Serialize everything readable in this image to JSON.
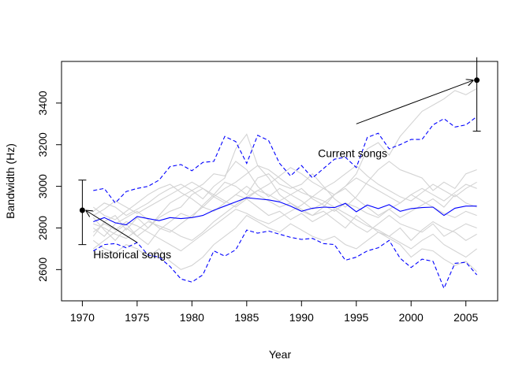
{
  "chart_data": {
    "type": "line",
    "title": "",
    "xlabel": "Year",
    "ylabel": "Bandwidth (Hz)",
    "xlim": [
      1968.1,
      2007.9
    ],
    "ylim": [
      2450,
      3600
    ],
    "x_ticks": [
      1970,
      1975,
      1980,
      1985,
      1990,
      1995,
      2000,
      2005
    ],
    "x_tick_labels": [
      "1970",
      "1975",
      "1980",
      "1985",
      "1990",
      "1995",
      "2000",
      "2005"
    ],
    "y_ticks": [
      2600,
      2800,
      3000,
      3200,
      3400
    ],
    "y_tick_labels": [
      "2600",
      "2800",
      "3000",
      "3200",
      "3400"
    ],
    "grid": false,
    "colors": {
      "mean": "#0000ff",
      "bounds": "#0000ff",
      "background": "#d3d3d3",
      "points": "#000000"
    },
    "years": [
      1971,
      1972,
      1973,
      1974,
      1975,
      1976,
      1977,
      1978,
      1979,
      1980,
      1981,
      1982,
      1983,
      1984,
      1985,
      1986,
      1987,
      1988,
      1989,
      1990,
      1991,
      1992,
      1993,
      1994,
      1995,
      1996,
      1997,
      1998,
      1999,
      2000,
      2001,
      2002,
      2003,
      2004,
      2005,
      2006
    ],
    "mean": [
      2830,
      2850,
      2825,
      2815,
      2855,
      2845,
      2835,
      2850,
      2845,
      2850,
      2860,
      2885,
      2905,
      2925,
      2945,
      2940,
      2935,
      2925,
      2905,
      2880,
      2895,
      2900,
      2898,
      2918,
      2878,
      2910,
      2893,
      2912,
      2880,
      2893,
      2898,
      2900,
      2860,
      2895,
      2905,
      2905
    ],
    "upper": [
      2980,
      2990,
      2920,
      2975,
      2990,
      3000,
      3030,
      3095,
      3105,
      3075,
      3115,
      3120,
      3240,
      3215,
      3110,
      3245,
      3220,
      3110,
      3050,
      3100,
      3040,
      3085,
      3130,
      3140,
      3090,
      3235,
      3255,
      3180,
      3200,
      3225,
      3225,
      3295,
      3325,
      3285,
      3295,
      3335
    ],
    "lower": [
      2690,
      2720,
      2725,
      2705,
      2730,
      2670,
      2660,
      2615,
      2555,
      2540,
      2575,
      2690,
      2665,
      2695,
      2790,
      2775,
      2785,
      2770,
      2755,
      2745,
      2750,
      2725,
      2720,
      2645,
      2660,
      2690,
      2705,
      2740,
      2655,
      2610,
      2650,
      2640,
      2510,
      2630,
      2635,
      2575
    ],
    "background_series": [
      [
        2760,
        2830,
        2860,
        2790,
        2850,
        2800,
        2860,
        2920,
        2950,
        2980,
        2940,
        3000,
        3040,
        3180,
        3250,
        3100,
        3040,
        2960,
        2920,
        2880,
        2860,
        2900,
        2960,
        3000,
        3060,
        3180,
        3210,
        3150,
        3240,
        3300,
        3360,
        3390,
        3420,
        3460,
        3440,
        3470
      ],
      [
        2850,
        2790,
        2740,
        2800,
        2760,
        2720,
        2790,
        2830,
        2870,
        2850,
        2910,
        2960,
        3020,
        3000,
        2960,
        3040,
        3060,
        3010,
        2990,
        3010,
        3060,
        3000,
        2940,
        2900,
        2950,
        3020,
        3080,
        3120,
        3080,
        3060,
        3040,
        2980,
        3020,
        2990,
        3060,
        3080
      ],
      [
        2700,
        2740,
        2780,
        2820,
        2760,
        2800,
        2850,
        2880,
        2900,
        2960,
        2990,
        2950,
        2920,
        2960,
        3000,
        2960,
        2930,
        2900,
        2920,
        2890,
        2860,
        2880,
        2840,
        2800,
        2860,
        2820,
        2780,
        2760,
        2800,
        2740,
        2790,
        2830,
        2800,
        2780,
        2740,
        2770
      ],
      [
        2880,
        2920,
        2900,
        2860,
        2890,
        2920,
        2960,
        2990,
        3010,
        2980,
        3010,
        3060,
        3050,
        3120,
        3080,
        3000,
        2950,
        2990,
        2960,
        2930,
        2890,
        2920,
        2960,
        2990,
        2940,
        2900,
        2860,
        2890,
        2850,
        2880,
        2910,
        2940,
        2900,
        2960,
        2920,
        2900
      ],
      [
        2800,
        2760,
        2820,
        2850,
        2880,
        2840,
        2800,
        2780,
        2820,
        2860,
        2900,
        2880,
        2920,
        2960,
        2940,
        2900,
        2860,
        2880,
        2840,
        2870,
        2830,
        2860,
        2890,
        2850,
        2810,
        2780,
        2820,
        2860,
        2820,
        2800,
        2780,
        2820,
        2760,
        2790,
        2820,
        2800
      ],
      [
        2740,
        2700,
        2680,
        2720,
        2700,
        2660,
        2700,
        2640,
        2600,
        2620,
        2660,
        2720,
        2760,
        2800,
        2860,
        2830,
        2800,
        2780,
        2820,
        2790,
        2760,
        2740,
        2760,
        2720,
        2700,
        2740,
        2780,
        2750,
        2720,
        2660,
        2700,
        2690,
        2650,
        2620,
        2640,
        2590
      ],
      [
        2900,
        2860,
        2840,
        2880,
        2920,
        2960,
        2990,
        3010,
        2970,
        2940,
        2900,
        2950,
        2990,
        3020,
        3060,
        3100,
        3080,
        3040,
        3000,
        2970,
        2950,
        2990,
        3020,
        3060,
        3100,
        3050,
        3010,
        2980,
        2950,
        2930,
        2970,
        3010,
        2980,
        2950,
        2990,
        3020
      ],
      [
        2820,
        2800,
        2770,
        2750,
        2790,
        2830,
        2810,
        2790,
        2760,
        2740,
        2780,
        2830,
        2870,
        2910,
        2950,
        2980,
        2960,
        2930,
        2960,
        2990,
        2940,
        2910,
        2880,
        2920,
        2900,
        2870,
        2850,
        2890,
        2920,
        2960,
        2930,
        2900,
        2870,
        2850,
        2880,
        2860
      ],
      [
        2780,
        2820,
        2790,
        2830,
        2810,
        2780,
        2750,
        2720,
        2690,
        2730,
        2770,
        2810,
        2850,
        2890,
        2870,
        2840,
        2820,
        2850,
        2880,
        2910,
        2950,
        2930,
        2900,
        2870,
        2840,
        2810,
        2790,
        2760,
        2730,
        2700,
        2740,
        2770,
        2720,
        2690,
        2660,
        2700
      ],
      [
        2860,
        2890,
        2930,
        2900,
        2870,
        2900,
        2930,
        2960,
        2990,
        3020,
        2990,
        2960,
        2930,
        2900,
        2940,
        2980,
        3010,
        3050,
        3090,
        3060,
        3020,
        2990,
        2960,
        3000,
        3040,
        3010,
        2980,
        2950,
        2920,
        2960,
        2990,
        2960,
        2930,
        2970,
        3010,
        2990
      ]
    ],
    "points": [
      {
        "label": "Historical songs",
        "x": 1970,
        "y": 2885,
        "err_low": 2720,
        "err_high": 3030
      },
      {
        "label": "Current songs",
        "x": 2006,
        "y": 3510,
        "err_low": 3265,
        "err_high": 3620
      }
    ],
    "annotations": [
      {
        "text": "Historical songs",
        "text_x": 1971,
        "text_y": 2655,
        "arrow_from": [
          1975,
          2730
        ],
        "arrow_to": [
          1970.3,
          2885
        ]
      },
      {
        "text": "Current songs",
        "text_x": 1991.5,
        "text_y": 3140,
        "arrow_from": [
          1995,
          3300
        ],
        "arrow_to": [
          2005.7,
          3510
        ]
      }
    ]
  }
}
